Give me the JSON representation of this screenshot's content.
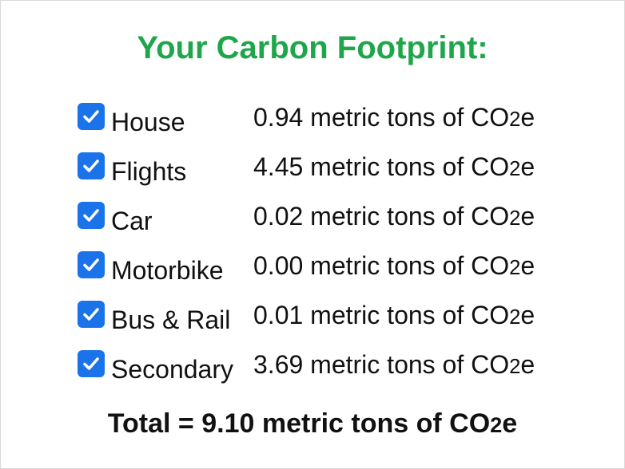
{
  "title": "Your Carbon Footprint:",
  "unit_text": "metric tons of CO",
  "unit_subscript": "2",
  "unit_suffix": "e",
  "checkbox_color": "#1a73e8",
  "title_color": "#1fa64a",
  "rows": [
    {
      "label": "House",
      "value": "0.94",
      "checked": true
    },
    {
      "label": "Flights",
      "value": "4.45",
      "checked": true
    },
    {
      "label": "Car",
      "value": "0.02",
      "checked": true
    },
    {
      "label": "Motorbike",
      "value": "0.00",
      "checked": true
    },
    {
      "label": "Bus & Rail",
      "value": "0.01",
      "checked": true
    },
    {
      "label": "Secondary",
      "value": "3.69",
      "checked": true
    }
  ],
  "total": {
    "prefix": "Total = ",
    "value": "9.10",
    "unit_text": "metric tons of CO",
    "unit_subscript": "2",
    "unit_suffix": "e"
  }
}
